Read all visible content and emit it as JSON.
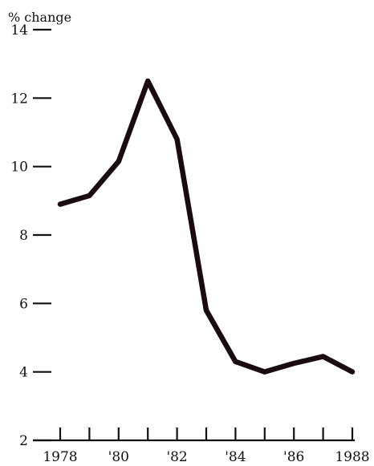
{
  "chart_data": {
    "type": "line",
    "title": "",
    "xlabel": "",
    "ylabel": "% change",
    "x": [
      1978,
      1979,
      1980,
      1981,
      1982,
      1983,
      1984,
      1985,
      1986,
      1987,
      1988
    ],
    "series": [
      {
        "values": [
          8.9,
          9.15,
          10.15,
          12.5,
          10.8,
          5.8,
          4.3,
          4.0,
          4.25,
          4.45,
          4.0
        ]
      }
    ],
    "ylim": [
      2,
      14
    ],
    "xlim": [
      1978,
      1988
    ],
    "yticks": [
      2,
      4,
      6,
      8,
      10,
      12,
      14
    ],
    "yticklabels": [
      "2",
      "4",
      "6",
      "8",
      "10",
      "12",
      "14"
    ],
    "xticks": [
      1978,
      1979,
      1980,
      1981,
      1982,
      1983,
      1984,
      1985,
      1986,
      1987,
      1988
    ],
    "xticklabels": [
      "1978",
      "'80",
      "'82",
      "'84",
      "'86",
      "1988"
    ],
    "xticklabel_positions": [
      1978,
      1980,
      1982,
      1984,
      1986,
      1988
    ],
    "grid": false,
    "line_color": "#1a0c0e"
  }
}
